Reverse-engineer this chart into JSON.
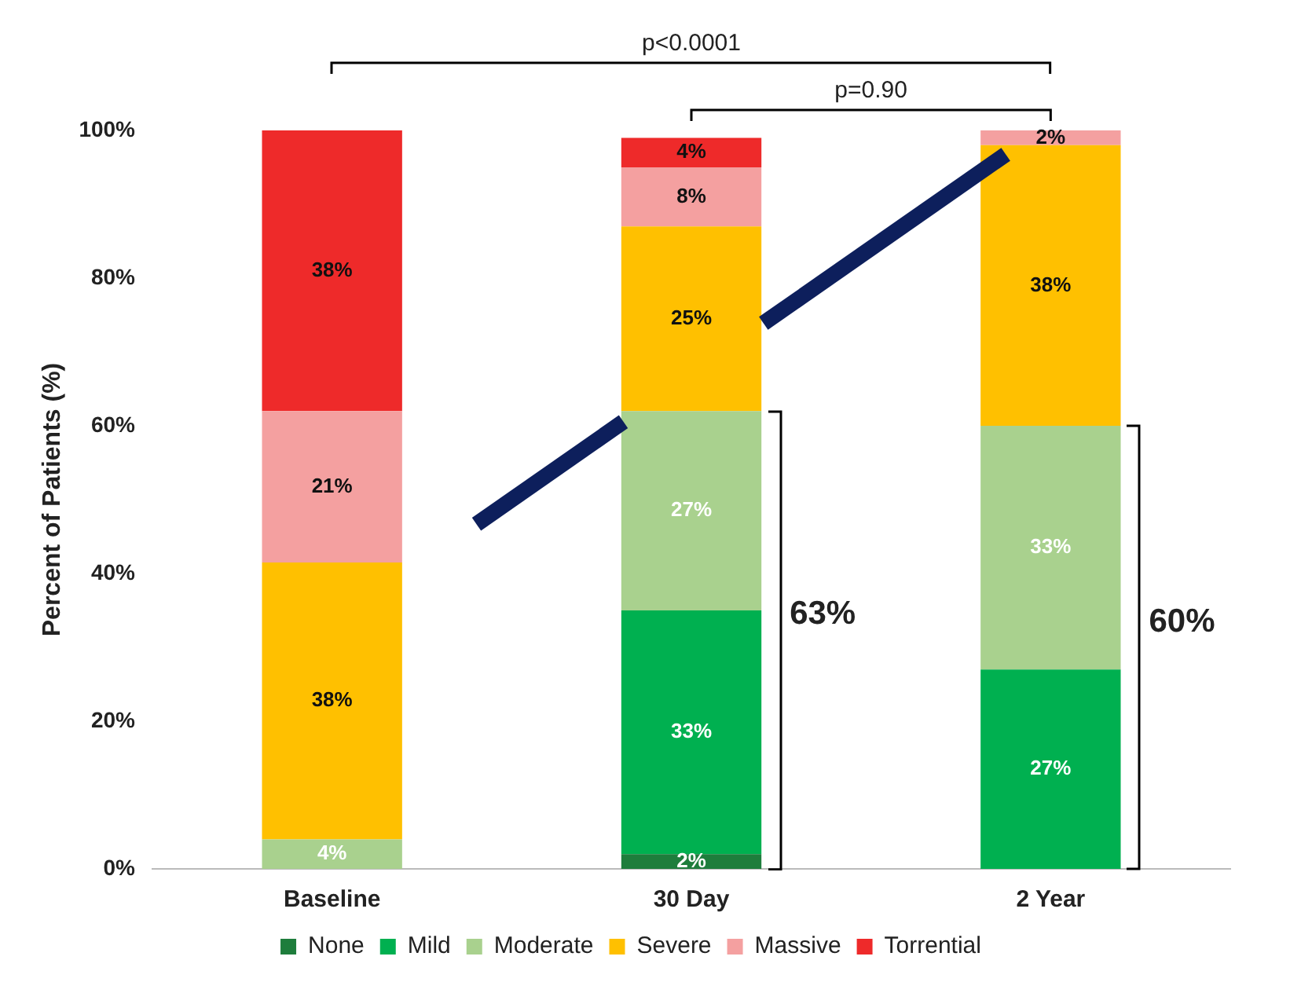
{
  "chart_data": {
    "type": "bar",
    "stacked": true,
    "ylabel": "Percent of Patients (%)",
    "categories": [
      "Baseline",
      "30 Day",
      "2 Year"
    ],
    "series": [
      {
        "name": "None",
        "color": "#1e7d3c",
        "values": [
          0,
          2,
          0
        ],
        "value_labels": [
          null,
          "2%",
          null
        ]
      },
      {
        "name": "Mild",
        "color": "#00b050",
        "values": [
          0,
          33,
          27
        ],
        "value_labels": [
          null,
          "33%",
          "27%"
        ]
      },
      {
        "name": "Moderate",
        "color": "#a9d18e",
        "values": [
          4,
          27,
          33
        ],
        "value_labels": [
          "4%",
          "27%",
          "33%"
        ]
      },
      {
        "name": "Severe",
        "color": "#ffc000",
        "values": [
          37.5,
          25,
          38
        ],
        "value_labels": [
          "38%",
          "25%",
          "38%"
        ]
      },
      {
        "name": "Massive",
        "color": "#f4a0a0",
        "values": [
          20.5,
          8,
          2
        ],
        "value_labels": [
          "21%",
          "8%",
          "2%"
        ]
      },
      {
        "name": "Torrential",
        "color": "#ee2a2a",
        "values": [
          38,
          4,
          0
        ],
        "value_labels": [
          "38%",
          "4%",
          null
        ]
      }
    ],
    "ylim": [
      0,
      100
    ],
    "yticks": [
      {
        "value": 0,
        "label": "0%"
      },
      {
        "value": 20,
        "label": "20%"
      },
      {
        "value": 40,
        "label": "40%"
      },
      {
        "value": 60,
        "label": "60%"
      },
      {
        "value": 80,
        "label": "80%"
      },
      {
        "value": 100,
        "label": "100%"
      }
    ],
    "grid": false,
    "legend": "bottom",
    "annotations": [
      "p<0.0001",
      "p=0.90",
      "63%",
      "60%"
    ]
  }
}
